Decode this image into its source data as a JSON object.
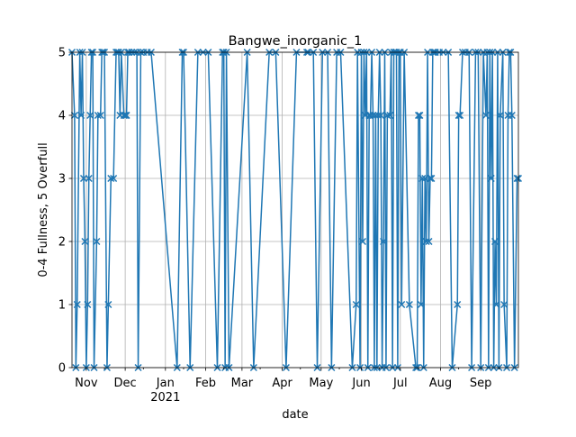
{
  "chart_data": {
    "type": "line",
    "title": "Bangwe_inorganic_1",
    "xlabel": "date",
    "ylabel": "0-4 Fullness, 5 Overfull",
    "ylim": [
      0,
      5
    ],
    "xlim": [
      "2020-10-21",
      "2021-09-30"
    ],
    "grid": true,
    "marker": "x",
    "color": "#1f77b4",
    "y_ticks": [
      0,
      1,
      2,
      3,
      4,
      5
    ],
    "x_ticks": [
      {
        "date": "2020-11-01",
        "label": "Nov",
        "sub": ""
      },
      {
        "date": "2020-12-01",
        "label": "Dec",
        "sub": ""
      },
      {
        "date": "2021-01-01",
        "label": "Jan",
        "sub": "2021"
      },
      {
        "date": "2021-02-01",
        "label": "Feb",
        "sub": ""
      },
      {
        "date": "2021-03-01",
        "label": "Mar",
        "sub": ""
      },
      {
        "date": "2021-04-01",
        "label": "Apr",
        "sub": ""
      },
      {
        "date": "2021-05-01",
        "label": "May",
        "sub": ""
      },
      {
        "date": "2021-06-01",
        "label": "Jun",
        "sub": ""
      },
      {
        "date": "2021-07-01",
        "label": "Jul",
        "sub": ""
      },
      {
        "date": "2021-08-01",
        "label": "Aug",
        "sub": ""
      },
      {
        "date": "2021-09-01",
        "label": "Sep",
        "sub": ""
      }
    ],
    "series": [
      {
        "x": [
          "2020-10-21",
          "2020-10-23",
          "2020-10-24",
          "2020-10-25",
          "2020-10-27",
          "2020-10-28",
          "2020-10-29",
          "2020-10-30",
          "2020-10-31",
          "2020-11-01",
          "2020-11-02",
          "2020-11-03",
          "2020-11-04",
          "2020-11-05",
          "2020-11-06",
          "2020-11-07",
          "2020-11-09",
          "2020-11-10",
          "2020-11-12",
          "2020-11-13",
          "2020-11-14",
          "2020-11-15",
          "2020-11-17",
          "2020-11-18",
          "2020-11-20",
          "2020-11-22",
          "2020-11-24",
          "2020-11-25",
          "2020-11-26",
          "2020-11-27",
          "2020-11-28",
          "2020-11-30",
          "2020-12-01",
          "2020-12-02",
          "2020-12-03",
          "2020-12-04",
          "2020-12-06",
          "2020-12-08",
          "2020-12-10",
          "2020-12-11",
          "2020-12-13",
          "2020-12-15",
          "2020-12-18",
          "2020-12-21",
          "2021-01-10",
          "2021-01-14",
          "2021-01-15",
          "2021-01-20",
          "2021-01-26",
          "2021-01-30",
          "2021-02-03",
          "2021-02-10",
          "2021-02-14",
          "2021-02-15",
          "2021-02-16",
          "2021-02-17",
          "2021-02-19",
          "2021-03-05",
          "2021-03-10",
          "2021-03-22",
          "2021-03-27",
          "2021-04-04",
          "2021-04-12",
          "2021-04-20",
          "2021-04-21",
          "2021-04-25",
          "2021-04-28",
          "2021-05-02",
          "2021-05-06",
          "2021-05-09",
          "2021-05-13",
          "2021-05-16",
          "2021-05-25",
          "2021-05-28",
          "2021-05-29",
          "2021-05-31",
          "2021-06-01",
          "2021-06-02",
          "2021-06-03",
          "2021-06-04",
          "2021-06-05",
          "2021-06-06",
          "2021-06-07",
          "2021-06-08",
          "2021-06-09",
          "2021-06-10",
          "2021-06-11",
          "2021-06-12",
          "2021-06-13",
          "2021-06-14",
          "2021-06-15",
          "2021-06-16",
          "2021-06-17",
          "2021-06-18",
          "2021-06-19",
          "2021-06-20",
          "2021-06-21",
          "2021-06-23",
          "2021-06-24",
          "2021-06-25",
          "2021-06-26",
          "2021-06-27",
          "2021-06-28",
          "2021-06-29",
          "2021-06-30",
          "2021-07-01",
          "2021-07-02",
          "2021-07-04",
          "2021-07-08",
          "2021-07-13",
          "2021-07-14",
          "2021-07-15",
          "2021-07-16",
          "2021-07-17",
          "2021-07-18",
          "2021-07-19",
          "2021-07-20",
          "2021-07-21",
          "2021-07-22",
          "2021-07-23",
          "2021-07-24",
          "2021-07-25",
          "2021-07-26",
          "2021-07-27",
          "2021-07-28",
          "2021-07-31",
          "2021-08-03",
          "2021-08-07",
          "2021-08-10",
          "2021-08-14",
          "2021-08-15",
          "2021-08-16",
          "2021-08-18",
          "2021-08-20",
          "2021-08-23",
          "2021-08-25",
          "2021-08-28",
          "2021-08-30",
          "2021-09-01",
          "2021-09-03",
          "2021-09-05",
          "2021-09-06",
          "2021-09-07",
          "2021-09-08",
          "2021-09-09",
          "2021-09-10",
          "2021-09-11",
          "2021-09-12",
          "2021-09-13",
          "2021-09-14",
          "2021-09-15",
          "2021-09-16",
          "2021-09-18",
          "2021-09-19",
          "2021-09-21",
          "2021-09-22",
          "2021-09-23",
          "2021-09-24",
          "2021-09-25",
          "2021-09-27",
          "2021-09-29",
          "2021-09-30"
        ],
        "y": [
          5,
          4,
          0,
          1,
          5,
          4,
          5,
          3,
          2,
          0,
          1,
          3,
          4,
          5,
          5,
          0,
          2,
          4,
          4,
          5,
          5,
          5,
          0,
          1,
          3,
          3,
          5,
          5,
          5,
          4,
          5,
          4,
          4,
          4,
          5,
          5,
          5,
          5,
          5,
          0,
          5,
          5,
          5,
          5,
          0,
          5,
          5,
          0,
          5,
          5,
          5,
          0,
          5,
          5,
          0,
          5,
          0,
          5,
          0,
          5,
          5,
          0,
          5,
          5,
          5,
          5,
          0,
          5,
          5,
          0,
          5,
          5,
          0,
          1,
          5,
          0,
          5,
          2,
          5,
          4,
          5,
          0,
          4,
          4,
          5,
          4,
          0,
          4,
          0,
          4,
          5,
          4,
          0,
          2,
          5,
          0,
          4,
          4,
          5,
          0,
          5,
          5,
          5,
          0,
          5,
          5,
          1,
          5,
          1,
          0,
          0,
          4,
          4,
          1,
          3,
          0,
          3,
          2,
          5,
          2,
          3,
          3,
          5,
          5,
          5,
          5,
          5,
          5,
          0,
          1,
          4,
          4,
          5,
          5,
          5,
          0,
          5,
          5,
          0,
          5,
          4,
          5,
          0,
          5,
          3,
          5,
          0,
          2,
          1,
          5,
          0,
          4,
          5,
          1,
          0,
          4,
          5,
          5,
          4,
          0,
          3,
          3
        ]
      }
    ]
  }
}
